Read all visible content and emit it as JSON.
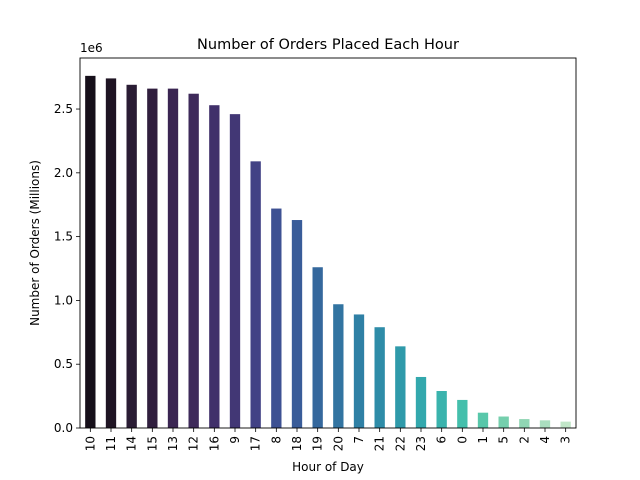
{
  "chart_data": {
    "type": "bar",
    "title": "Number of Orders Placed Each Hour",
    "xlabel": "Hour of Day",
    "ylabel": "Number of Orders (Millions)",
    "y_offset_label": "1e6",
    "ylim": [
      0,
      2.9
    ],
    "yticks": [
      0.0,
      0.5,
      1.0,
      1.5,
      2.0,
      2.5
    ],
    "ytick_labels": [
      "0.0",
      "0.5",
      "1.0",
      "1.5",
      "2.0",
      "2.5"
    ],
    "categories": [
      "10",
      "11",
      "14",
      "15",
      "13",
      "12",
      "16",
      "9",
      "17",
      "8",
      "18",
      "19",
      "20",
      "7",
      "21",
      "22",
      "23",
      "6",
      "0",
      "1",
      "5",
      "2",
      "4",
      "3"
    ],
    "values": [
      2.76,
      2.74,
      2.69,
      2.66,
      2.66,
      2.62,
      2.53,
      2.46,
      2.09,
      1.72,
      1.63,
      1.26,
      0.97,
      0.89,
      0.79,
      0.64,
      0.4,
      0.29,
      0.22,
      0.12,
      0.09,
      0.07,
      0.06,
      0.05
    ],
    "colors": [
      "#160f1a",
      "#1f1423",
      "#2a1c34",
      "#301e3e",
      "#3a2552",
      "#3e2a5a",
      "#40306a",
      "#423775",
      "#424285",
      "#3d5193",
      "#395c99",
      "#35689d",
      "#3274a1",
      "#2f80a5",
      "#2e8ca8",
      "#2f9aaa",
      "#33a8ad",
      "#3ab3ad",
      "#44bfac",
      "#58c7aa",
      "#75cfad",
      "#90d6b4",
      "#aadebf",
      "#c1e6c8"
    ],
    "grid": false,
    "legend": "none"
  }
}
